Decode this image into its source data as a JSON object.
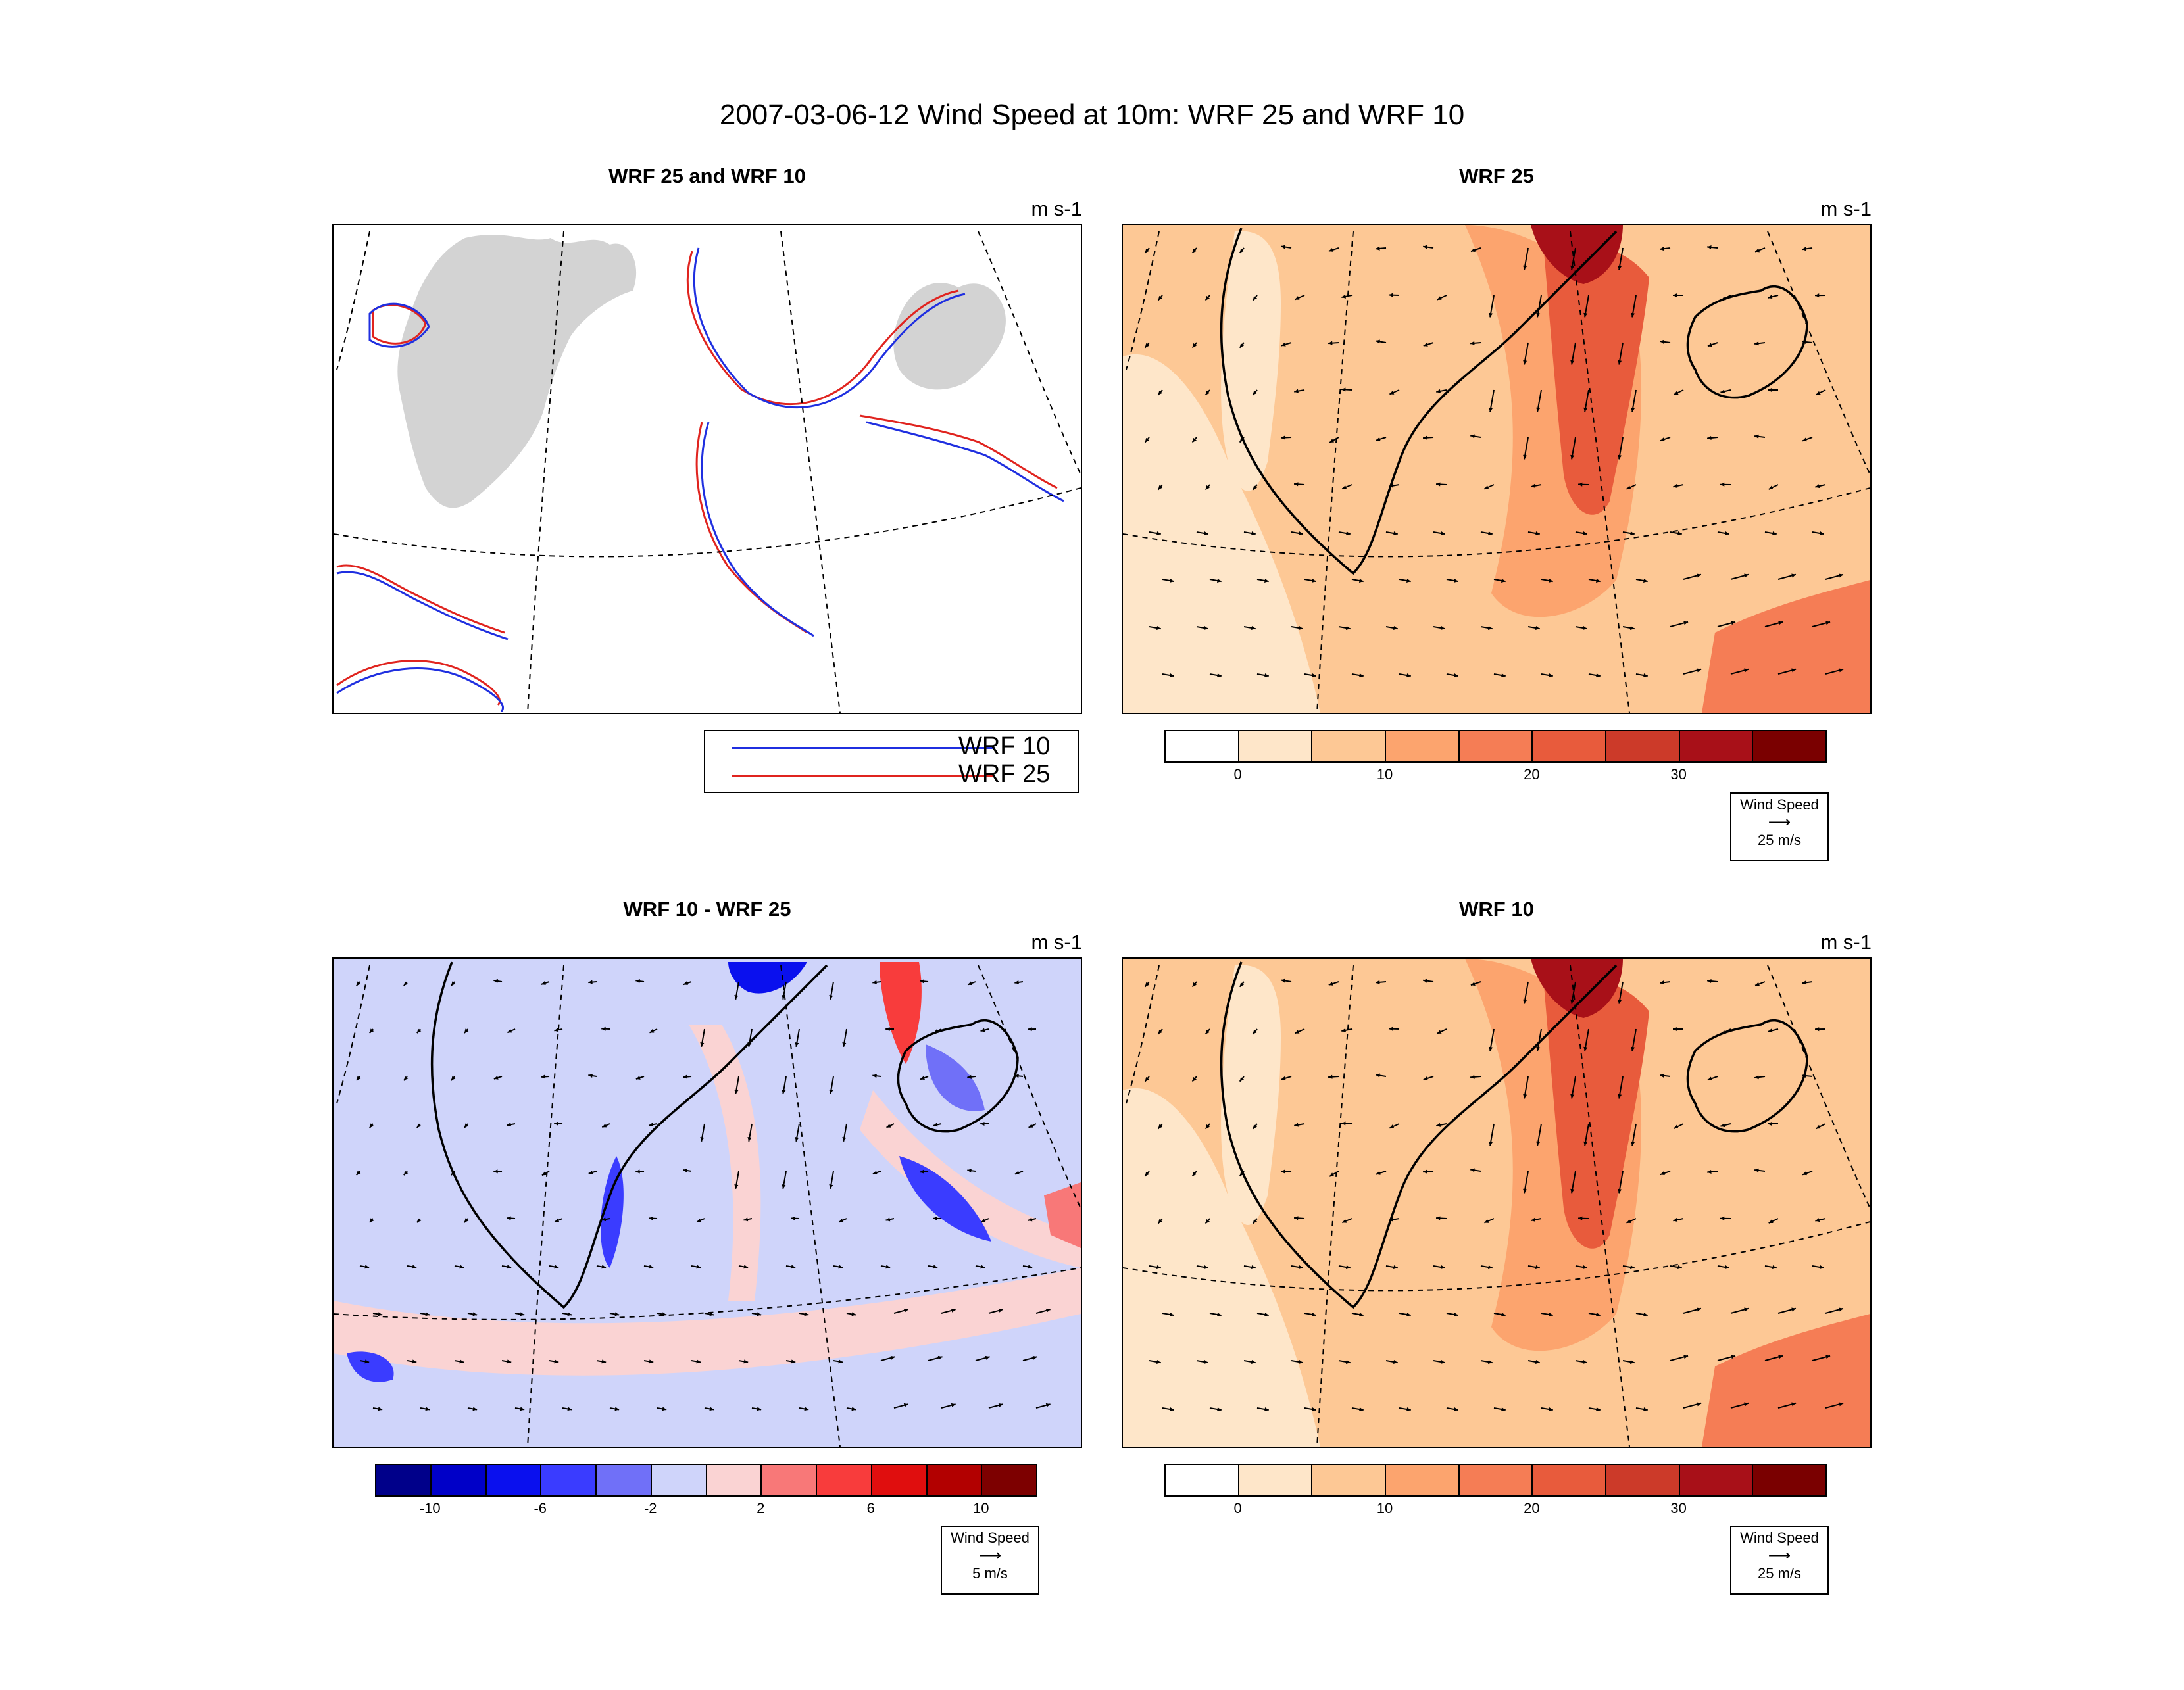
{
  "figure": {
    "title": "2007-03-06-12 Wind Speed at 10m: WRF 25 and WRF 10"
  },
  "panels": [
    {
      "title": "WRF 25 and WRF 10",
      "units": "m s-1"
    },
    {
      "title": "WRF 25",
      "units": "m s-1"
    },
    {
      "title": "WRF 10 - WRF 25",
      "units": "m s-1"
    },
    {
      "title": "WRF 10",
      "units": "m s-1"
    }
  ],
  "legend": {
    "items": [
      {
        "label": "WRF 10",
        "color": "#1f2fe0"
      },
      {
        "label": "WRF 25",
        "color": "#e0241f"
      }
    ]
  },
  "speed_colorbar": {
    "colors": [
      "#ffffff",
      "#fee6c9",
      "#fdc895",
      "#fca46e",
      "#f57d55",
      "#e85b3c",
      "#cc3a29",
      "#a81018",
      "#7a0000"
    ],
    "tick_labels": [
      "0",
      "10",
      "20",
      "30"
    ]
  },
  "diff_colorbar": {
    "colors": [
      "#00008a",
      "#0000c8",
      "#0a10ee",
      "#3a3cff",
      "#7070f8",
      "#cfd4fa",
      "#fad3d3",
      "#f87878",
      "#f83c3c",
      "#e00e0e",
      "#b20000",
      "#7d0000"
    ],
    "tick_labels": [
      "-10",
      "-6",
      "-2",
      "2",
      "6",
      "10"
    ]
  },
  "reference_vectors": {
    "speed": {
      "label": "Wind Speed",
      "value": "25 m/s"
    },
    "diff": {
      "label": "Wind Speed",
      "value": "5 m/s"
    }
  },
  "map_colors": {
    "land": "#d3d3d3",
    "coast": "#000000",
    "grid": "#000000"
  }
}
